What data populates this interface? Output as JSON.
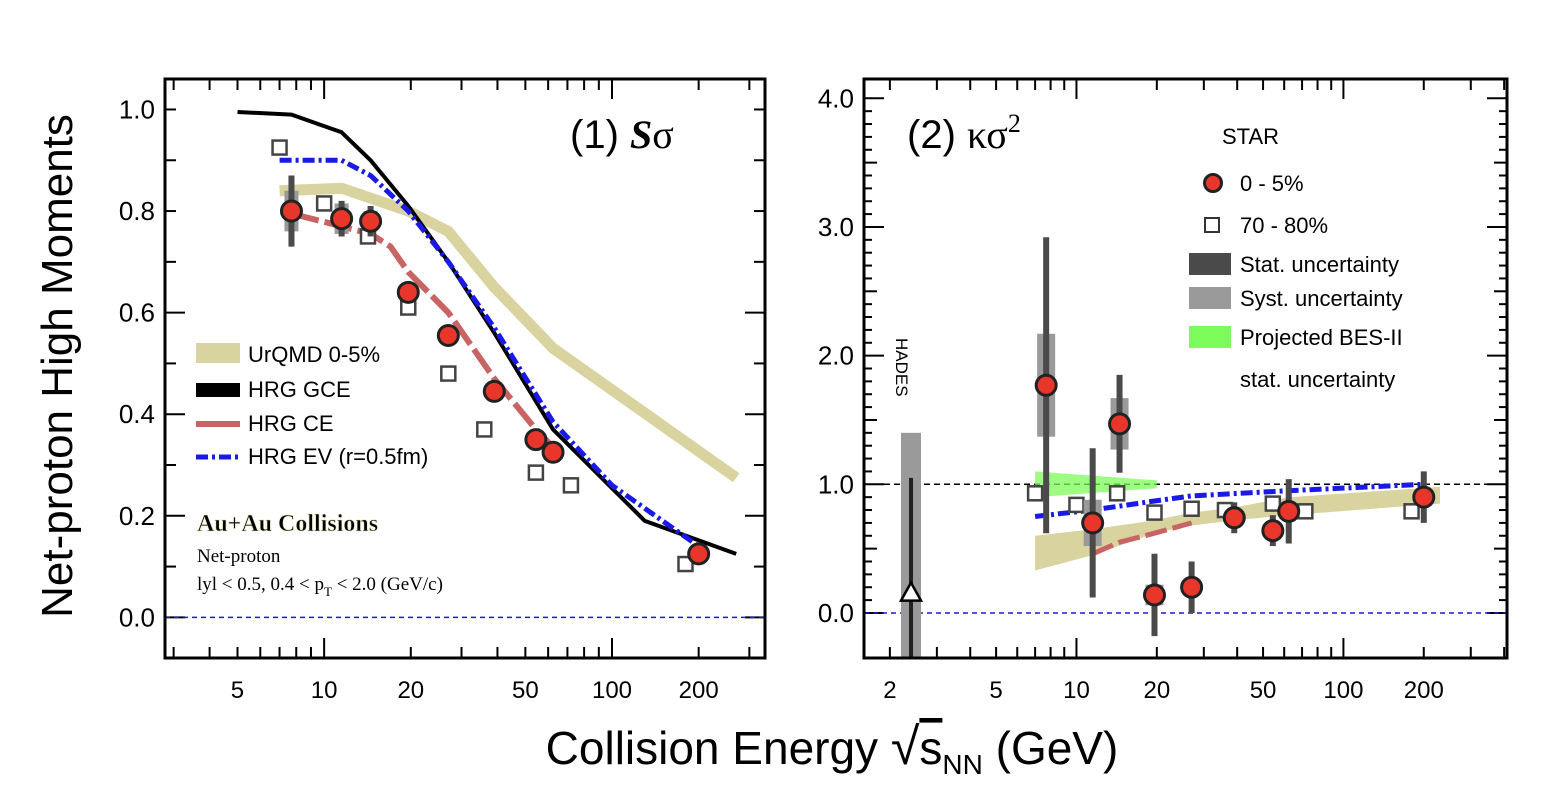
{
  "figure": {
    "ylabel": "Net-proton High Moments",
    "xlabel_main": "Collision Energy ",
    "xlabel_s": "s",
    "xlabel_sub": "NN",
    "xlabel_unit": " (GeV)"
  },
  "panels": {
    "p1": {
      "title_num": "(1) ",
      "title_s": "S",
      "title_sigma": "σ",
      "yticks": [
        "0.0",
        "0.2",
        "0.4",
        "0.6",
        "0.8",
        "1.0"
      ],
      "xticks": [
        "5",
        "10",
        "20",
        "50",
        "100",
        "200"
      ],
      "legend": {
        "urqmd": "UrQMD 0-5%",
        "gce": "HRG GCE",
        "ce": "HRG CE",
        "ev": "HRG EV (r=0.5fm)"
      },
      "annot": {
        "collisions": "Au+Au Collisions",
        "netproton": "Net-proton",
        "cuts_a": "lyl < 0.5,  0.4 < p",
        "cuts_sub": "T",
        "cuts_b": " < 2.0 (GeV/c)"
      }
    },
    "p2": {
      "title_num": "(2) ",
      "title_kappa": "κσ",
      "title_sup": "2",
      "yticks": [
        "0.0",
        "1.0",
        "2.0",
        "3.0",
        "4.0"
      ],
      "xticks": [
        "2",
        "5",
        "10",
        "20",
        "50",
        "100",
        "200"
      ],
      "hades": "HADES",
      "legend": {
        "star": "STAR",
        "central": "0 - 5%",
        "peripheral": "70 - 80%",
        "stat": "Stat. uncertainty",
        "syst": "Syst. uncertainty",
        "proj1": "Projected BES-II",
        "proj2": "stat. uncertainty"
      }
    }
  },
  "colors": {
    "star_central": "#e8372a",
    "urqmd_band": "#d9d3a0",
    "hrg_gce": "#000000",
    "hrg_ce": "#c96464",
    "hrg_ev": "#1a1ae6",
    "stat": "#4a4a4a",
    "syst": "#9a9a9a",
    "bes2": "#7cfc5a",
    "reference_line": "#1a1ae6"
  },
  "chart_data": [
    {
      "panel": "(1) Sσ",
      "type": "scatter",
      "x_axis": "log",
      "xlim": [
        2.8,
        340
      ],
      "ylim": [
        -0.08,
        1.06
      ],
      "reference_line_y": 0.0,
      "series": [
        {
          "name": "0 - 5%",
          "x": [
            7.7,
            11.5,
            14.5,
            19.6,
            27,
            39,
            54.4,
            62.4,
            200
          ],
          "y": [
            0.8,
            0.785,
            0.78,
            0.64,
            0.555,
            0.445,
            0.35,
            0.325,
            0.125
          ],
          "stat": [
            0.07,
            0.035,
            0.03,
            0.015,
            0.012,
            0.01,
            0.008,
            0.01,
            0.01
          ],
          "syst": [
            0.04,
            0.03,
            0.02,
            0.015,
            0.015,
            0.015,
            0.012,
            0.012,
            0.008
          ]
        },
        {
          "name": "70 - 80%",
          "x": [
            7.0,
            10.0,
            14.2,
            19.6,
            27,
            36,
            54.4,
            72,
            180
          ],
          "y": [
            0.925,
            0.815,
            0.75,
            0.61,
            0.48,
            0.37,
            0.285,
            0.26,
            0.105
          ]
        },
        {
          "name": "UrQMD 0-5%",
          "x": [
            7.0,
            11.5,
            19.6,
            27,
            39,
            62.4,
            270
          ],
          "y": [
            0.84,
            0.845,
            0.8,
            0.76,
            0.65,
            0.53,
            0.275
          ]
        },
        {
          "name": "HRG GCE",
          "x": [
            5.0,
            7.7,
            11.5,
            14.5,
            19.6,
            27,
            39,
            62.4,
            130,
            270
          ],
          "y": [
            0.995,
            0.99,
            0.955,
            0.9,
            0.81,
            0.7,
            0.56,
            0.37,
            0.19,
            0.125
          ]
        },
        {
          "name": "HRG CE",
          "x": [
            7.7,
            11.5,
            14.5,
            17,
            19.6,
            27,
            39,
            54.4,
            62.4
          ],
          "y": [
            0.795,
            0.77,
            0.755,
            0.73,
            0.68,
            0.6,
            0.47,
            0.37,
            0.335
          ]
        },
        {
          "name": "HRG EV (r=0.5fm)",
          "x": [
            7.0,
            11.5,
            14.5,
            19.6,
            27,
            39,
            62.4,
            100,
            200
          ],
          "y": [
            0.9,
            0.9,
            0.87,
            0.8,
            0.7,
            0.57,
            0.385,
            0.26,
            0.14
          ]
        }
      ]
    },
    {
      "panel": "(2) κσ²",
      "type": "scatter",
      "x_axis": "log",
      "xlim": [
        1.6,
        410
      ],
      "ylim": [
        -0.35,
        4.15
      ],
      "reference_lines_y": [
        0.0,
        1.0
      ],
      "series": [
        {
          "name": "0 - 5%",
          "x": [
            7.7,
            11.5,
            14.5,
            19.6,
            27,
            39,
            54.4,
            62.4,
            200
          ],
          "y": [
            1.77,
            0.7,
            1.47,
            0.14,
            0.2,
            0.74,
            0.64,
            0.79,
            0.9
          ],
          "stat": [
            1.15,
            0.58,
            0.38,
            0.32,
            0.2,
            0.12,
            0.12,
            0.25,
            0.2
          ],
          "syst": [
            0.4,
            0.18,
            0.2,
            0.08,
            0.06,
            0.05,
            0.05,
            0.06,
            0.05
          ]
        },
        {
          "name": "70 - 80%",
          "x": [
            7.0,
            10.0,
            14.2,
            19.6,
            27,
            36,
            54.4,
            72,
            180
          ],
          "y": [
            0.93,
            0.84,
            0.93,
            0.78,
            0.81,
            0.8,
            0.85,
            0.79,
            0.79
          ]
        },
        {
          "name": "HADES",
          "x": [
            2.4
          ],
          "y": [
            0.15
          ],
          "stat": [
            0.9
          ],
          "syst": [
            1.25
          ]
        },
        {
          "name": "UrQMD 0-5%",
          "x": [
            7.0,
            11.5,
            19.6,
            27,
            39,
            62.4,
            230
          ],
          "y_low": [
            0.33,
            0.45,
            0.62,
            0.68,
            0.72,
            0.76,
            0.85
          ],
          "y_high": [
            0.6,
            0.65,
            0.72,
            0.78,
            0.82,
            0.9,
            0.98
          ]
        },
        {
          "name": "HRG CE",
          "x": [
            11.5,
            14.5,
            19.6,
            27
          ],
          "y": [
            0.46,
            0.55,
            0.62,
            0.7
          ]
        },
        {
          "name": "HRG EV (r=0.5fm)",
          "x": [
            7.0,
            11.5,
            19.6,
            27,
            62.4,
            200
          ],
          "y": [
            0.75,
            0.8,
            0.87,
            0.91,
            0.95,
            1.0
          ]
        },
        {
          "name": "Projected BES-II",
          "x": [
            7.0,
            20.0
          ],
          "y": [
            1.0,
            1.0
          ],
          "half_width": [
            0.1,
            0.03
          ]
        }
      ]
    }
  ]
}
